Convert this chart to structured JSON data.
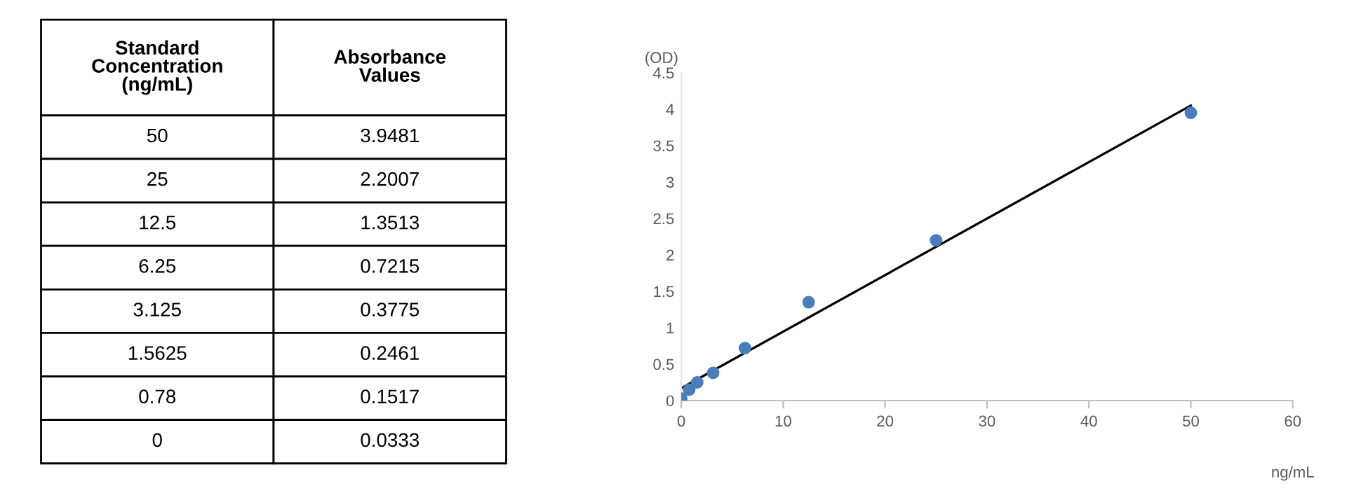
{
  "chart_data": [
    {
      "type": "other",
      "xlabel": "Standard\nConcentration\n(ng/mL)",
      "ylabel": "Absorbance\nValues",
      "categories": [
        "50",
        "25",
        "12.5",
        "6.25",
        "3.125",
        "1.5625",
        "0.78",
        "0"
      ],
      "values": [
        3.9481,
        2.2007,
        1.3513,
        0.7215,
        0.3775,
        0.2461,
        0.1517,
        0.0333
      ],
      "data_labels": true
    },
    {
      "type": "scatter",
      "xlabel": "ng/mL",
      "ylabel": "(OD)",
      "xlim": [
        0,
        60
      ],
      "xticks": [
        0,
        10,
        20,
        30,
        40,
        50,
        60
      ],
      "ylim": [
        0,
        4.5
      ],
      "yticks": [
        0,
        0.5,
        1,
        1.5,
        2,
        2.5,
        3,
        3.5,
        4,
        4.5
      ],
      "series": [
        {
          "type": "scatter",
          "color": "#4a7ebb",
          "marker": "circle",
          "x": [
            50,
            25,
            12.5,
            6.25,
            3.125,
            1.5625,
            0.78,
            0
          ],
          "values": [
            3.95,
            2.2,
            1.35,
            0.72,
            0.38,
            0.25,
            0.15,
            0.03
          ]
        },
        {
          "type": "line",
          "color": "#000000",
          "line_style": "solid",
          "x": [
            0,
            50
          ],
          "values": [
            0.17,
            4.05
          ]
        }
      ]
    }
  ]
}
